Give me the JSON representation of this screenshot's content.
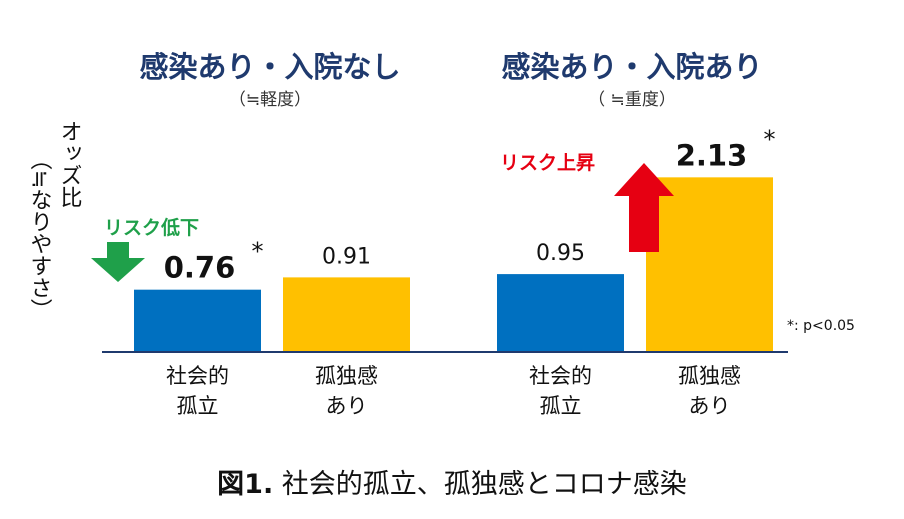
{
  "chart_data": {
    "type": "bar",
    "ylabel_line1": "オッズ比",
    "ylabel_line2": "（≒なりやすさ）",
    "groups": [
      {
        "title": "感染あり・入院なし",
        "subtitle": "（≒軽度）",
        "bars": [
          {
            "category_line1": "社会的",
            "category_line2": "孤立",
            "value": 0.76,
            "label": "0.76",
            "significant": true,
            "color": "#0070c0"
          },
          {
            "category_line1": "孤独感",
            "category_line2": "あり",
            "value": 0.91,
            "label": "0.91",
            "significant": false,
            "color": "#ffc000"
          }
        ],
        "annotation": {
          "text": "リスク低下",
          "direction": "down",
          "color": "#1fa04a"
        }
      },
      {
        "title": "感染あり・入院あり",
        "subtitle": "（ ≒重度）",
        "bars": [
          {
            "category_line1": "社会的",
            "category_line2": "孤立",
            "value": 0.95,
            "label": "0.95",
            "significant": false,
            "color": "#0070c0"
          },
          {
            "category_line1": "孤独感",
            "category_line2": "あり",
            "value": 2.13,
            "label": "2.13",
            "significant": true,
            "color": "#ffc000"
          }
        ],
        "annotation": {
          "text": "リスク上昇",
          "direction": "up",
          "color": "#e60012"
        }
      }
    ],
    "significance_marker": "*",
    "note": "*: p<0.05",
    "grid": false,
    "legend": "none"
  },
  "caption": {
    "bold": "図1.",
    "text": " 社会的孤立、孤独感とコロナ感染"
  },
  "colors": {
    "isolation": "#0070c0",
    "loneliness": "#ffc000",
    "down_arrow": "#1fa04a",
    "up_arrow": "#e60012",
    "title": "#1f3a6e"
  }
}
